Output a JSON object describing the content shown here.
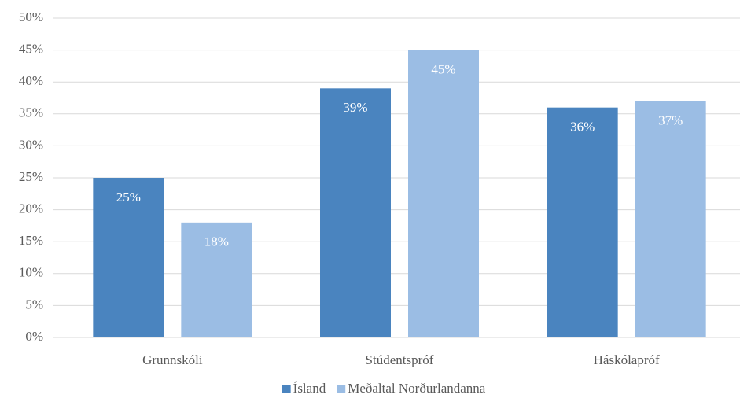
{
  "chart_data": {
    "type": "bar",
    "categories": [
      "Grunnskóli",
      "Stúdentspróf",
      "Háskólapróf"
    ],
    "series": [
      {
        "name": "Ísland",
        "color": "#4a84bf",
        "values": [
          25,
          39,
          36
        ],
        "value_labels": [
          "25%",
          "39%",
          "36%"
        ]
      },
      {
        "name": "Meðaltal Norðurlandanna",
        "color": "#9bbde4",
        "values": [
          18,
          45,
          37
        ],
        "value_labels": [
          "18%",
          "45%",
          "37%"
        ]
      }
    ],
    "ylim": [
      0,
      50
    ],
    "yticks": [
      {
        "value": 0,
        "label": "0%"
      },
      {
        "value": 5,
        "label": "5%"
      },
      {
        "value": 10,
        "label": "10%"
      },
      {
        "value": 15,
        "label": "15%"
      },
      {
        "value": 20,
        "label": "20%"
      },
      {
        "value": 25,
        "label": "25%"
      },
      {
        "value": 30,
        "label": "30%"
      },
      {
        "value": 35,
        "label": "35%"
      },
      {
        "value": 40,
        "label": "40%"
      },
      {
        "value": 45,
        "label": "45%"
      },
      {
        "value": 50,
        "label": "50%"
      }
    ],
    "grid": true,
    "legend": "bottom"
  }
}
